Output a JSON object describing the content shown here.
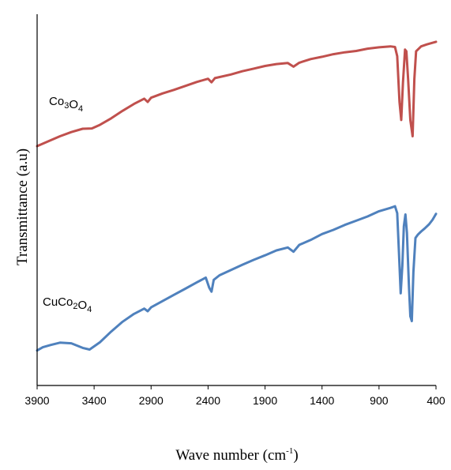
{
  "chart_data": {
    "type": "line",
    "xlabel": {
      "main": "Wave number (cm",
      "sup": "-1",
      "close": ")"
    },
    "ylabel": "Transmittance (a.u)",
    "x_reversed": true,
    "xlim": [
      3900,
      400
    ],
    "ylim": [
      0,
      100
    ],
    "x_ticks": [
      "3900",
      "3400",
      "2900",
      "2400",
      "1900",
      "1400",
      "900",
      "400"
    ],
    "y_ticks": [],
    "grid": false,
    "legend": "none",
    "series": [
      {
        "name": "Co3O4",
        "label_parts": [
          {
            "t": "Co",
            "s": ""
          },
          {
            "t": "3",
            "s": "sub"
          },
          {
            "t": "O",
            "s": ""
          },
          {
            "t": "4",
            "s": "sub"
          }
        ],
        "color": "#c0504d",
        "points": [
          [
            3900,
            64.5
          ],
          [
            3800,
            66.0
          ],
          [
            3700,
            67.5
          ],
          [
            3600,
            68.8
          ],
          [
            3500,
            69.8
          ],
          [
            3420,
            69.9
          ],
          [
            3350,
            71.0
          ],
          [
            3250,
            73.0
          ],
          [
            3150,
            75.3
          ],
          [
            3050,
            77.4
          ],
          [
            2960,
            79.0
          ],
          [
            2930,
            78.0
          ],
          [
            2900,
            79.3
          ],
          [
            2800,
            80.6
          ],
          [
            2700,
            81.7
          ],
          [
            2600,
            82.9
          ],
          [
            2500,
            84.1
          ],
          [
            2400,
            85.1
          ],
          [
            2370,
            84.0
          ],
          [
            2340,
            85.3
          ],
          [
            2200,
            86.4
          ],
          [
            2100,
            87.4
          ],
          [
            2000,
            88.2
          ],
          [
            1900,
            89.0
          ],
          [
            1800,
            89.6
          ],
          [
            1700,
            89.9
          ],
          [
            1650,
            88.8
          ],
          [
            1600,
            90.0
          ],
          [
            1500,
            91.1
          ],
          [
            1400,
            91.8
          ],
          [
            1300,
            92.6
          ],
          [
            1200,
            93.2
          ],
          [
            1100,
            93.6
          ],
          [
            1000,
            94.3
          ],
          [
            900,
            94.7
          ],
          [
            800,
            95.0
          ],
          [
            760,
            94.8
          ],
          [
            740,
            92.0
          ],
          [
            720,
            78.0
          ],
          [
            705,
            72.5
          ],
          [
            690,
            84.0
          ],
          [
            672,
            94.0
          ],
          [
            660,
            93.5
          ],
          [
            645,
            85.0
          ],
          [
            625,
            72.5
          ],
          [
            605,
            67.5
          ],
          [
            590,
            85.0
          ],
          [
            575,
            93.5
          ],
          [
            530,
            95.0
          ],
          [
            480,
            95.6
          ],
          [
            440,
            96.0
          ],
          [
            400,
            96.4
          ]
        ]
      },
      {
        "name": "CuCo2O4",
        "label_parts": [
          {
            "t": "CuCo",
            "s": ""
          },
          {
            "t": "2",
            "s": "sub"
          },
          {
            "t": "O",
            "s": ""
          },
          {
            "t": "4",
            "s": "sub"
          }
        ],
        "color": "#4f81bd",
        "points": [
          [
            3900,
            2.0
          ],
          [
            3850,
            3.0
          ],
          [
            3780,
            3.7
          ],
          [
            3700,
            4.4
          ],
          [
            3600,
            4.2
          ],
          [
            3500,
            2.8
          ],
          [
            3440,
            2.3
          ],
          [
            3350,
            4.5
          ],
          [
            3250,
            7.8
          ],
          [
            3150,
            10.8
          ],
          [
            3050,
            13.2
          ],
          [
            2960,
            14.8
          ],
          [
            2930,
            14.0
          ],
          [
            2900,
            15.2
          ],
          [
            2800,
            17.1
          ],
          [
            2700,
            19.0
          ],
          [
            2600,
            20.9
          ],
          [
            2500,
            22.8
          ],
          [
            2420,
            24.3
          ],
          [
            2390,
            21.2
          ],
          [
            2370,
            20.0
          ],
          [
            2350,
            23.6
          ],
          [
            2300,
            25.0
          ],
          [
            2200,
            26.6
          ],
          [
            2100,
            28.2
          ],
          [
            2000,
            29.7
          ],
          [
            1900,
            31.1
          ],
          [
            1800,
            32.6
          ],
          [
            1700,
            33.5
          ],
          [
            1650,
            32.2
          ],
          [
            1600,
            34.3
          ],
          [
            1500,
            35.8
          ],
          [
            1400,
            37.6
          ],
          [
            1300,
            38.9
          ],
          [
            1200,
            40.4
          ],
          [
            1100,
            41.7
          ],
          [
            1000,
            43.0
          ],
          [
            900,
            44.6
          ],
          [
            800,
            45.6
          ],
          [
            760,
            46.1
          ],
          [
            740,
            44.0
          ],
          [
            725,
            32.0
          ],
          [
            710,
            19.5
          ],
          [
            695,
            28.0
          ],
          [
            682,
            40.0
          ],
          [
            668,
            43.6
          ],
          [
            655,
            38.0
          ],
          [
            638,
            22.0
          ],
          [
            625,
            12.5
          ],
          [
            612,
            11.0
          ],
          [
            598,
            26.0
          ],
          [
            580,
            36.4
          ],
          [
            560,
            37.4
          ],
          [
            530,
            38.4
          ],
          [
            500,
            39.3
          ],
          [
            460,
            40.6
          ],
          [
            430,
            42.0
          ],
          [
            400,
            43.8
          ]
        ]
      }
    ]
  }
}
